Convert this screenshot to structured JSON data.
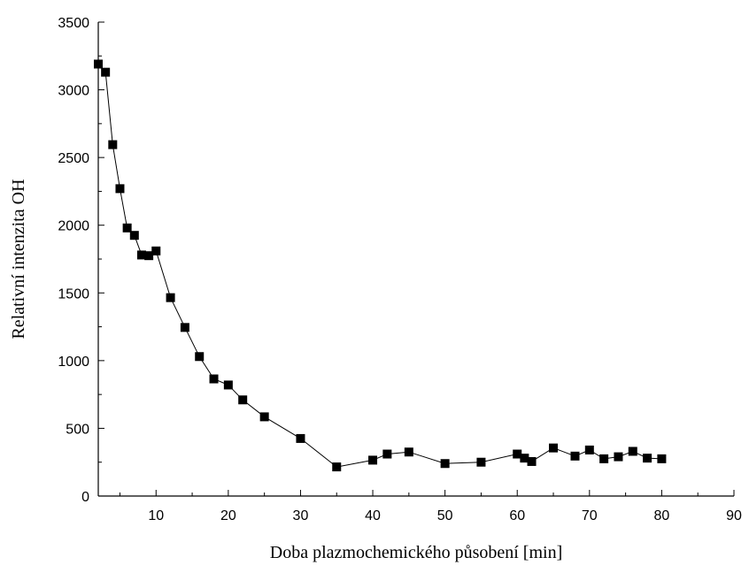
{
  "chart_data": {
    "type": "scatter",
    "title": "",
    "xlabel": "Doba plazmochemického působení [min]",
    "ylabel": "Relativní intenzita OH",
    "xlim": [
      2,
      90
    ],
    "ylim": [
      0,
      3500
    ],
    "x_ticks": [
      10,
      20,
      30,
      40,
      50,
      60,
      70,
      80,
      90
    ],
    "y_ticks": [
      0,
      500,
      1000,
      1500,
      2000,
      2500,
      3000,
      3500
    ],
    "grid": false,
    "legend": "none",
    "line_connected": true,
    "marker": "square",
    "color": "#000000",
    "series": [
      {
        "x": [
          2,
          3,
          4,
          5,
          6,
          7,
          8,
          9,
          10,
          12,
          14,
          16,
          18,
          20,
          22,
          25,
          30,
          35,
          40,
          42,
          45,
          50,
          55,
          60,
          61,
          62,
          65,
          68,
          70,
          72,
          74,
          76,
          78,
          80
        ],
        "y": [
          3190,
          3130,
          2595,
          2270,
          1980,
          1925,
          1780,
          1775,
          1810,
          1465,
          1245,
          1030,
          865,
          820,
          710,
          585,
          425,
          215,
          265,
          310,
          325,
          240,
          250,
          310,
          280,
          255,
          355,
          295,
          340,
          275,
          290,
          330,
          280,
          275
        ]
      }
    ]
  }
}
